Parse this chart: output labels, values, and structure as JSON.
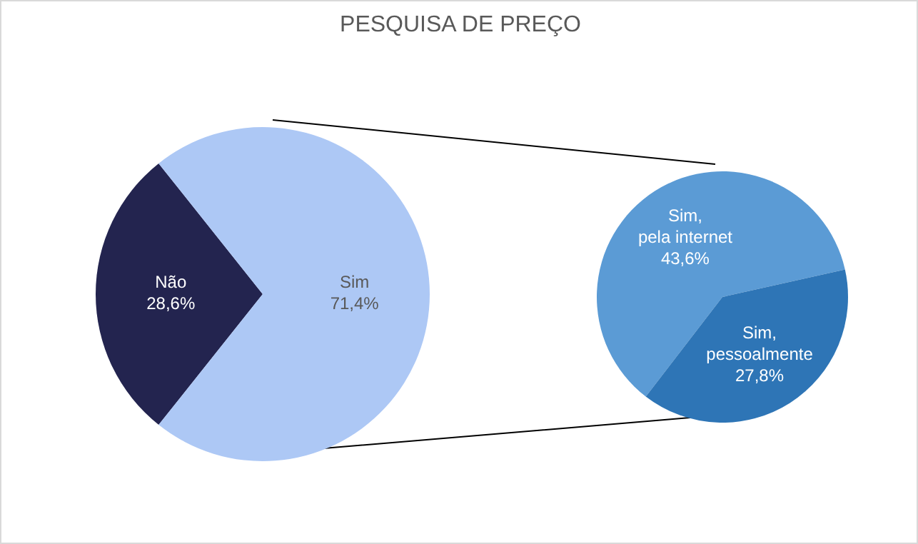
{
  "chart_data": [
    {
      "type": "pie",
      "title": "PESQUISA DE PREÇO",
      "categories": [
        "Não",
        "Sim"
      ],
      "values": [
        28.6,
        71.4
      ],
      "colors": [
        "#23244f",
        "#adc8f5"
      ],
      "value_labels": [
        "28,6%",
        "71,4%"
      ]
    },
    {
      "type": "pie",
      "categories": [
        "Sim, pela internet",
        "Sim, pessoalmente"
      ],
      "values": [
        43.6,
        27.8
      ],
      "colors": [
        "#5b9bd5",
        "#2e75b6"
      ],
      "value_labels": [
        "43,6%",
        "27,8%"
      ]
    }
  ]
}
